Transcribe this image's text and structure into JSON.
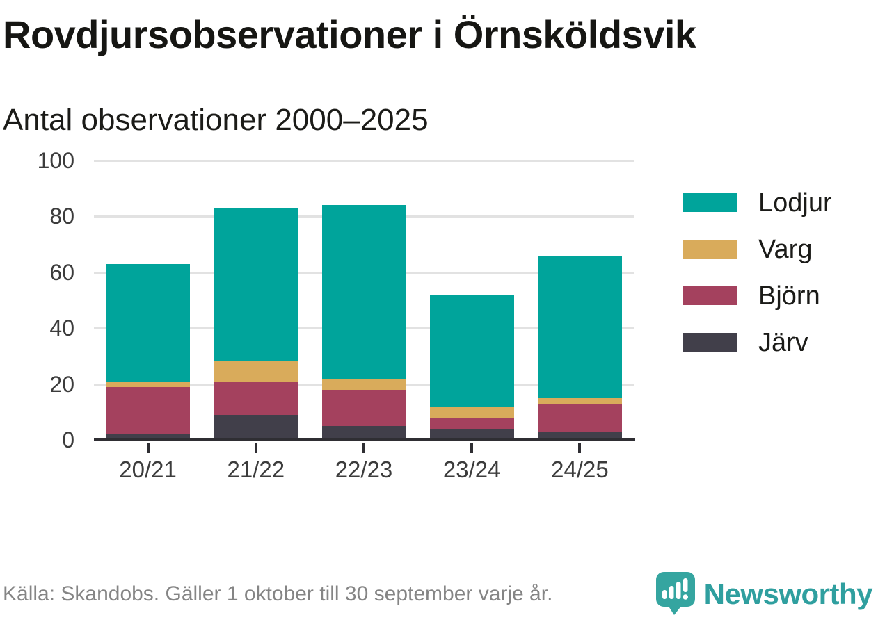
{
  "title": "Rovdjursobservationer i Örnsköldsvik",
  "subtitle": "Antal observationer 2000–2025",
  "source_note": "Källa: Skandobs. Gäller 1 oktober till 30 september varje år.",
  "brand": {
    "name": "Newsworthy",
    "icon": "newsworthy-speech-bubble-bar-chart-icon",
    "color": "#2f9f9f"
  },
  "colors": {
    "axis": "#2f2e33",
    "grid": "#e2e2e2",
    "tick_label": "#3c3c3c",
    "title_text": "#161613",
    "source_text": "#858585"
  },
  "chart_data": {
    "type": "bar",
    "stacked": true,
    "title": "Rovdjursobservationer i Örnsköldsvik",
    "subtitle": "Antal observationer 2000–2025",
    "categories": [
      "20/21",
      "21/22",
      "22/23",
      "23/24",
      "24/25"
    ],
    "series": [
      {
        "name": "Lodjur",
        "color": "#00a49b",
        "values": [
          42,
          55,
          62,
          40,
          51
        ]
      },
      {
        "name": "Varg",
        "color": "#d9ab5b",
        "values": [
          2,
          7,
          4,
          4,
          2
        ]
      },
      {
        "name": "Björn",
        "color": "#a4415e",
        "values": [
          17,
          12,
          13,
          4,
          10
        ]
      },
      {
        "name": "Järv",
        "color": "#413f4a",
        "values": [
          2,
          9,
          5,
          4,
          3
        ]
      }
    ],
    "stack_order_top_to_bottom": [
      "Lodjur",
      "Varg",
      "Björn",
      "Järv"
    ],
    "totals": [
      63,
      83,
      84,
      52,
      66
    ],
    "ylim": [
      0,
      100
    ],
    "yticks": [
      0,
      20,
      40,
      60,
      80,
      100
    ],
    "xlabel": "",
    "ylabel": "",
    "grid": "horizontal",
    "legend_position": "right"
  }
}
